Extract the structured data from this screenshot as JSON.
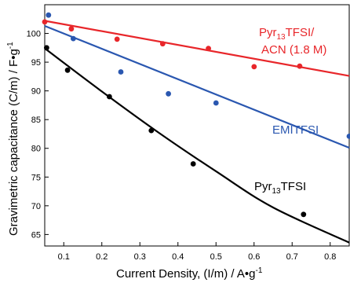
{
  "chart_data": {
    "type": "scatter",
    "title": "",
    "xlabel": "Current Density, (I/m) / A•g⁻¹",
    "ylabel": "Gravimetric capacitance (C/m) / F•g⁻¹",
    "xlim": [
      0.05,
      0.85
    ],
    "ylim": [
      63,
      105
    ],
    "xticks": [
      0.1,
      0.2,
      0.3,
      0.4,
      0.5,
      0.6,
      0.7,
      0.8
    ],
    "xtick_labels": [
      "0.1",
      "0.2",
      "0.3",
      "0.4",
      "0.5",
      "0.6",
      "0.7",
      "0.8"
    ],
    "yticks": [
      65,
      70,
      75,
      80,
      85,
      90,
      95,
      100
    ],
    "ytick_labels": [
      "65",
      "70",
      "75",
      "80",
      "85",
      "90",
      "95",
      "100"
    ],
    "grid": false,
    "legend": "none",
    "series": [
      {
        "label_line1": "Pyr13TFSI/",
        "label_line2": "ACN (1.8 M)",
        "color": "#e8262a",
        "points": [
          {
            "x": 0.05,
            "y": 102.0
          },
          {
            "x": 0.12,
            "y": 100.8
          },
          {
            "x": 0.24,
            "y": 99.0
          },
          {
            "x": 0.36,
            "y": 98.2
          },
          {
            "x": 0.48,
            "y": 97.4
          },
          {
            "x": 0.6,
            "y": 94.2
          },
          {
            "x": 0.72,
            "y": 94.3
          }
        ],
        "fit": [
          [
            0.05,
            102.2
          ],
          [
            0.85,
            92.6
          ]
        ]
      },
      {
        "label": "EMITFSI",
        "color": "#2a57b0",
        "points": [
          {
            "x": 0.06,
            "y": 103.2
          },
          {
            "x": 0.125,
            "y": 99.1
          },
          {
            "x": 0.25,
            "y": 93.3
          },
          {
            "x": 0.375,
            "y": 89.5
          },
          {
            "x": 0.5,
            "y": 87.9
          },
          {
            "x": 0.85,
            "y": 82.1
          }
        ],
        "fit": [
          [
            0.05,
            101.3
          ],
          [
            0.85,
            80.1
          ]
        ]
      },
      {
        "label": "Pyr13TFSI",
        "color": "#000000",
        "points": [
          {
            "x": 0.055,
            "y": 97.5
          },
          {
            "x": 0.11,
            "y": 93.6
          },
          {
            "x": 0.22,
            "y": 89.0
          },
          {
            "x": 0.33,
            "y": 83.1
          },
          {
            "x": 0.44,
            "y": 77.3
          },
          {
            "x": 0.73,
            "y": 68.5
          }
        ],
        "fit": [
          [
            0.05,
            97.4
          ],
          [
            0.2,
            89.9
          ],
          [
            0.35,
            82.7
          ],
          [
            0.5,
            76.0
          ],
          [
            0.65,
            69.7
          ],
          [
            0.85,
            63.6
          ]
        ]
      }
    ]
  }
}
